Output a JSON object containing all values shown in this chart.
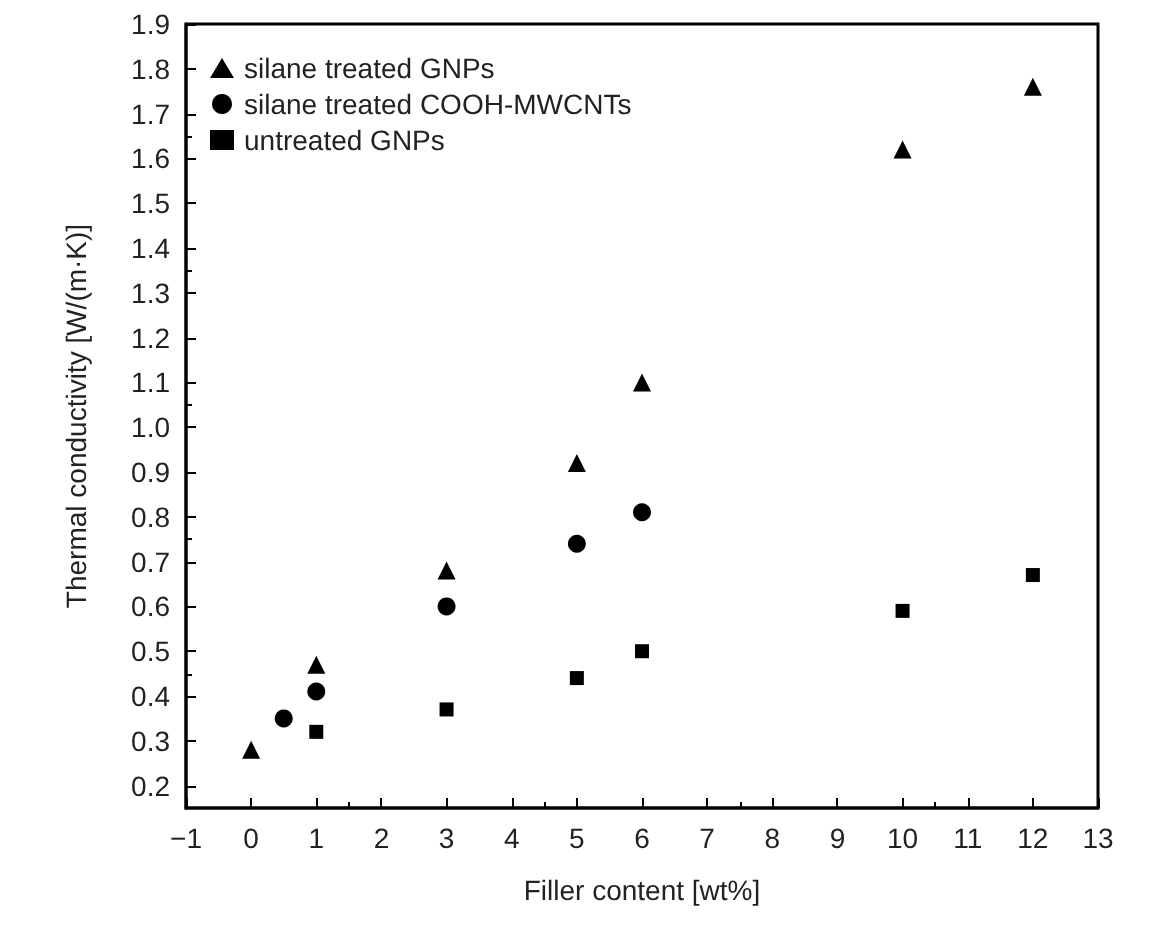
{
  "chart_data": {
    "type": "scatter",
    "xlabel": "Filler content [wt%]",
    "ylabel": "Thermal conductivity [W/(m·K)]",
    "xlim": [
      -1,
      13
    ],
    "xticks": [
      {
        "value": -1,
        "label": "−1"
      },
      0,
      1,
      2,
      3,
      4,
      5,
      6,
      7,
      8,
      9,
      10,
      11,
      12,
      13
    ],
    "ylim": [
      0.15,
      1.9
    ],
    "yticks": [
      0.2,
      0.3,
      0.4,
      0.5,
      0.6,
      0.7,
      0.8,
      0.9,
      {
        "value": 1.0,
        "label": "1.0"
      },
      1.1,
      1.2,
      1.3,
      1.4,
      1.5,
      1.6,
      1.7,
      1.8,
      1.9
    ],
    "grid": false,
    "legend": "top left",
    "series": [
      {
        "name": "silane treated GNPs",
        "color": "#000000",
        "marker": "triangle",
        "x": [
          0,
          1,
          3,
          5,
          6,
          10,
          12
        ],
        "values": [
          0.28,
          0.47,
          0.68,
          0.92,
          1.1,
          1.62,
          1.76
        ]
      },
      {
        "name": "silane treated COOH-MWCNTs",
        "color": "#000000",
        "marker": "circle",
        "x": [
          0.5,
          1,
          3,
          5,
          6
        ],
        "values": [
          0.35,
          0.41,
          0.6,
          0.74,
          0.81
        ]
      },
      {
        "name": "untreated GNPs",
        "color": "#000000",
        "marker": "square",
        "x": [
          1,
          3,
          5,
          6,
          10,
          12
        ],
        "values": [
          0.32,
          0.37,
          0.44,
          0.5,
          0.59,
          0.67
        ]
      }
    ]
  }
}
